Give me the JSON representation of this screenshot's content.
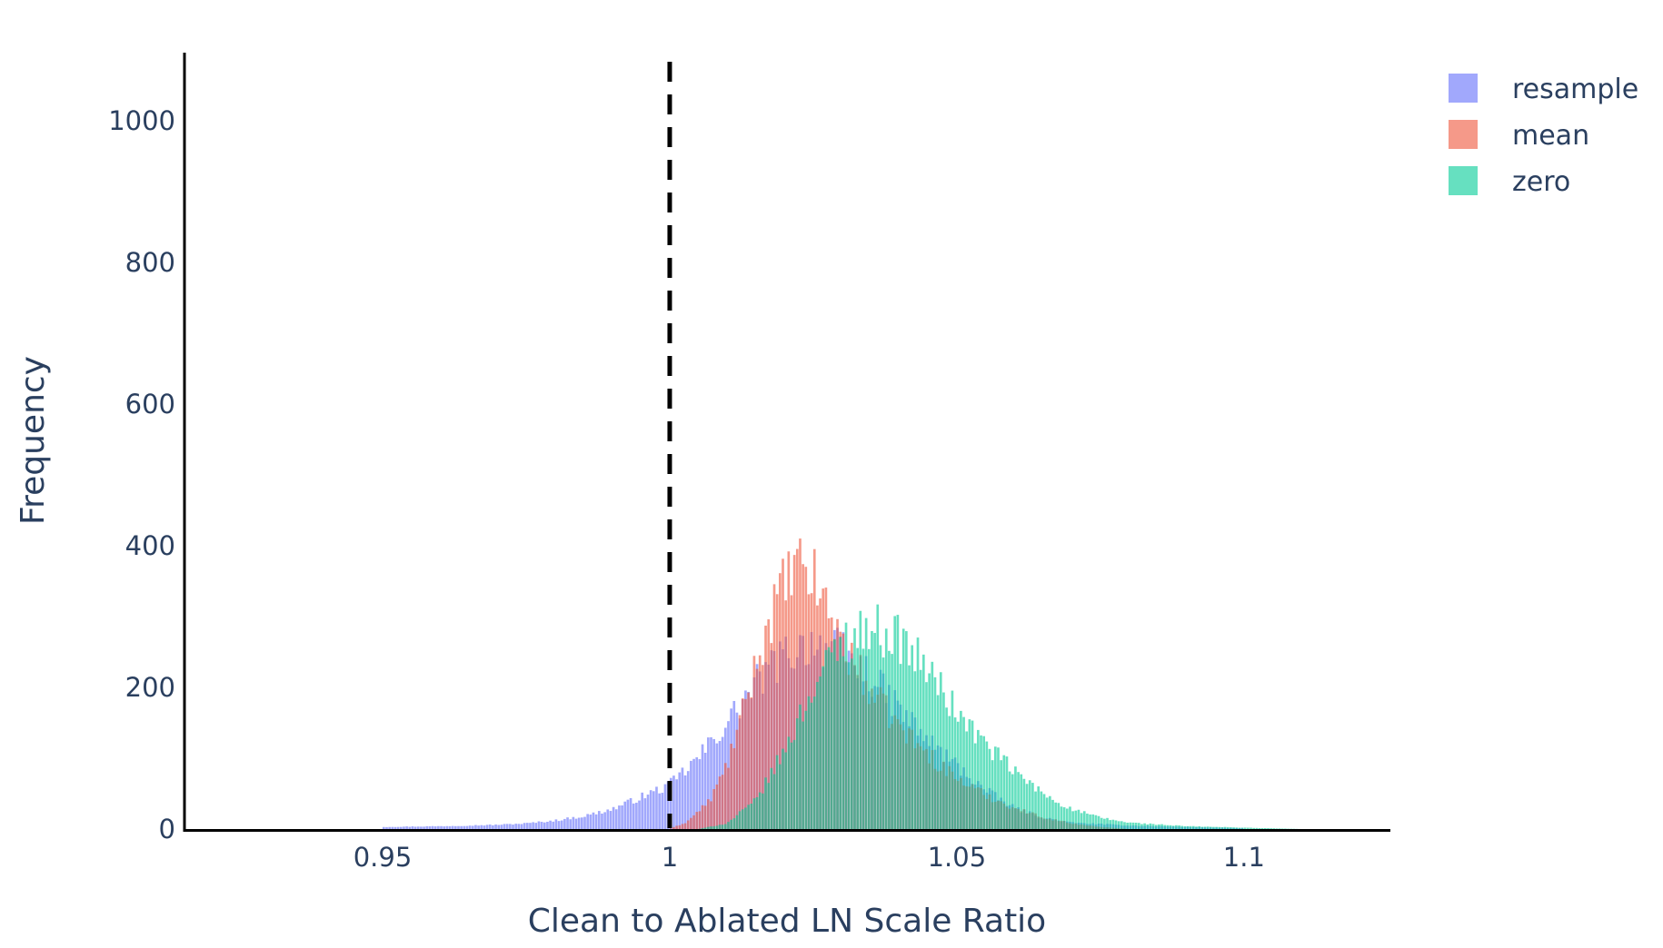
{
  "chart_data": {
    "type": "histogram",
    "xlabel": "Clean to Ablated LN Scale Ratio",
    "ylabel": "Frequency",
    "xlim": [
      0.9155,
      1.1255
    ],
    "ylim": [
      0,
      1100
    ],
    "x_ticks": [
      {
        "value": 0.95,
        "label": "0.95"
      },
      {
        "value": 1.0,
        "label": "1"
      },
      {
        "value": 1.05,
        "label": "1.05"
      },
      {
        "value": 1.1,
        "label": "1.1"
      }
    ],
    "y_ticks": [
      {
        "value": 0,
        "label": "0"
      },
      {
        "value": 200,
        "label": "200"
      },
      {
        "value": 400,
        "label": "400"
      },
      {
        "value": 600,
        "label": "600"
      },
      {
        "value": 800,
        "label": "800"
      },
      {
        "value": 1000,
        "label": "1000"
      }
    ],
    "bin_width": 0.0005,
    "reference_line": {
      "x": 1.0,
      "style": "dashed",
      "color": "#000000"
    },
    "legend_position": "top-right",
    "barmode": "overlay",
    "opacity": 0.6,
    "series": [
      {
        "name": "resample",
        "color": "#636efa",
        "points": [
          [
            0.95,
            3
          ],
          [
            0.96,
            4
          ],
          [
            0.97,
            6
          ],
          [
            0.975,
            8
          ],
          [
            0.98,
            12
          ],
          [
            0.985,
            18
          ],
          [
            0.99,
            28
          ],
          [
            0.995,
            45
          ],
          [
            1.0,
            62
          ],
          [
            1.005,
            100
          ],
          [
            1.01,
            150
          ],
          [
            1.015,
            205
          ],
          [
            1.02,
            245
          ],
          [
            1.025,
            265
          ],
          [
            1.03,
            250
          ],
          [
            1.035,
            215
          ],
          [
            1.04,
            170
          ],
          [
            1.045,
            125
          ],
          [
            1.05,
            90
          ],
          [
            1.055,
            55
          ],
          [
            1.06,
            30
          ],
          [
            1.065,
            16
          ],
          [
            1.07,
            9
          ],
          [
            1.08,
            5
          ],
          [
            1.09,
            3
          ],
          [
            1.1,
            1
          ]
        ]
      },
      {
        "name": "mean",
        "color": "#ef553b",
        "points": [
          [
            1.0,
            0
          ],
          [
            1.003,
            10
          ],
          [
            1.007,
            40
          ],
          [
            1.01,
            90
          ],
          [
            1.013,
            170
          ],
          [
            1.016,
            260
          ],
          [
            1.019,
            330
          ],
          [
            1.022,
            370
          ],
          [
            1.025,
            355
          ],
          [
            1.028,
            305
          ],
          [
            1.031,
            250
          ],
          [
            1.035,
            195
          ],
          [
            1.04,
            145
          ],
          [
            1.045,
            105
          ],
          [
            1.05,
            72
          ],
          [
            1.055,
            48
          ],
          [
            1.06,
            30
          ],
          [
            1.065,
            17
          ],
          [
            1.07,
            8
          ],
          [
            1.075,
            3
          ],
          [
            1.08,
            0
          ]
        ]
      },
      {
        "name": "zero",
        "color": "#00cc96",
        "points": [
          [
            1.005,
            0
          ],
          [
            1.01,
            8
          ],
          [
            1.015,
            40
          ],
          [
            1.02,
            110
          ],
          [
            1.025,
            200
          ],
          [
            1.03,
            265
          ],
          [
            1.035,
            285
          ],
          [
            1.04,
            270
          ],
          [
            1.045,
            225
          ],
          [
            1.05,
            165
          ],
          [
            1.055,
            120
          ],
          [
            1.06,
            82
          ],
          [
            1.065,
            50
          ],
          [
            1.07,
            28
          ],
          [
            1.075,
            16
          ],
          [
            1.08,
            9
          ],
          [
            1.09,
            4
          ],
          [
            1.1,
            2
          ],
          [
            1.11,
            0
          ]
        ]
      }
    ]
  }
}
